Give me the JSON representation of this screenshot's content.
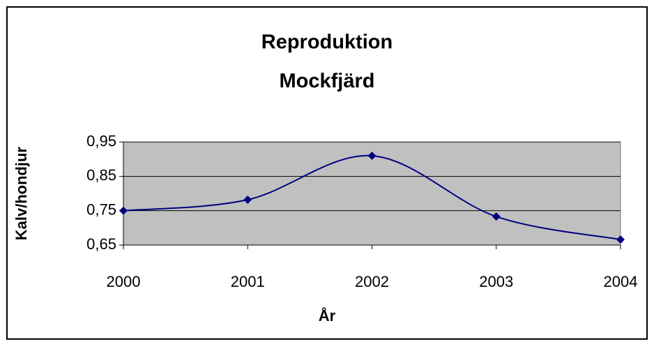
{
  "chart_data": {
    "type": "line",
    "title": [
      "Reproduktion",
      "Mockfjärd"
    ],
    "xlabel": "År",
    "ylabel": "Kalv/hondjur",
    "x": [
      2000,
      2001,
      2002,
      2003,
      2004
    ],
    "series": [
      {
        "name": "Kalv/hondjur",
        "color": "#000080",
        "values": [
          0.75,
          0.782,
          0.91,
          0.733,
          0.666
        ]
      }
    ],
    "xlim": [
      2000,
      2004
    ],
    "xticks": [
      2000,
      2001,
      2002,
      2003,
      2004
    ],
    "ylim": [
      0.65,
      0.95
    ],
    "yticks": [
      {
        "value": 0.65,
        "label": "0,65"
      },
      {
        "value": 0.75,
        "label": "0,75"
      },
      {
        "value": 0.85,
        "label": "0,85"
      },
      {
        "value": 0.95,
        "label": "0,95"
      }
    ],
    "grid": true,
    "smooth": true,
    "legend": false
  }
}
